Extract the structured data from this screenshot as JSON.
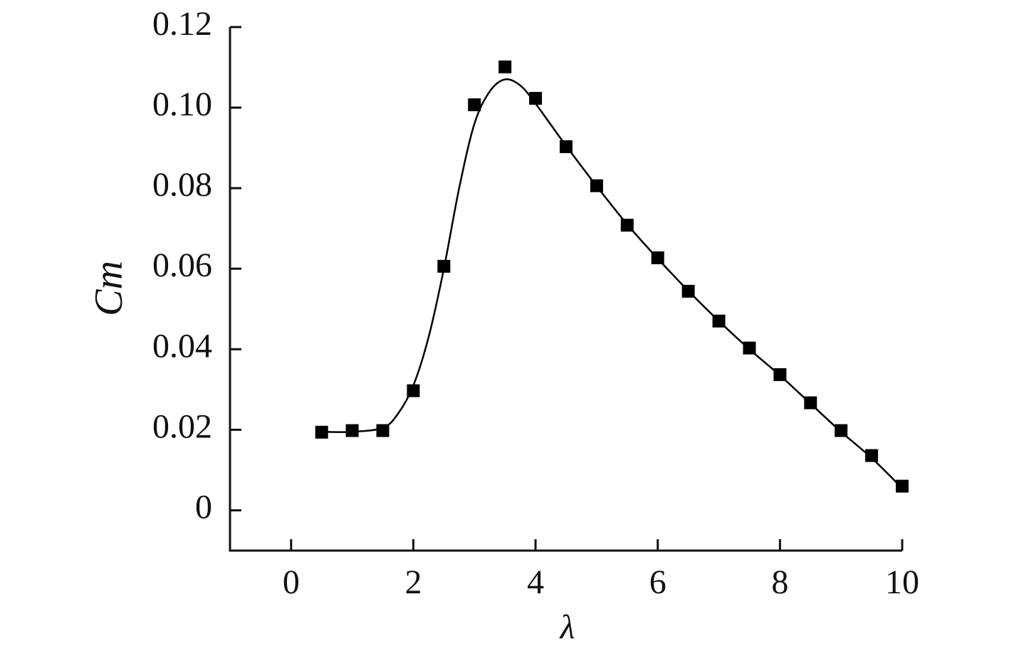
{
  "chart_data": {
    "type": "scatter",
    "xlabel": "λ",
    "ylabel": "Cm",
    "xlim": [
      -1,
      10
    ],
    "ylim": [
      -0.01,
      0.12
    ],
    "xticks": [
      0,
      2,
      4,
      6,
      8,
      10
    ],
    "yticks": [
      0,
      0.02,
      0.04,
      0.06,
      0.08,
      {
        "value": 0.1,
        "label": "0.10"
      },
      0.12
    ],
    "series": [
      {
        "style": "markers",
        "marker": "square",
        "color": "#000000",
        "x": [
          0.5,
          1,
          1.5,
          2,
          2.5,
          3,
          3.5,
          4,
          4.5,
          5,
          5.5,
          6,
          6.5,
          7,
          7.5,
          8,
          8.5,
          9,
          9.5,
          10
        ],
        "values": [
          0.0194,
          0.0198,
          0.0198,
          0.0297,
          0.0606,
          0.1007,
          0.1101,
          0.1023,
          0.0903,
          0.0806,
          0.0708,
          0.0627,
          0.0544,
          0.047,
          0.0403,
          0.0337,
          0.0267,
          0.0198,
          0.0136,
          0.006
        ]
      },
      {
        "style": "smooth-line",
        "color": "#000000",
        "x": [
          0.5,
          1,
          1.5,
          1.75,
          2,
          2.25,
          2.5,
          2.75,
          3,
          3.25,
          3.5,
          3.75,
          4,
          4.5,
          5,
          5.5,
          6,
          6.5,
          7,
          7.5,
          8,
          8.5,
          9,
          9.5,
          10
        ],
        "values": [
          0.0195,
          0.0195,
          0.0205,
          0.024,
          0.031,
          0.043,
          0.06,
          0.08,
          0.096,
          0.104,
          0.107,
          0.1055,
          0.101,
          0.0905,
          0.0805,
          0.071,
          0.0625,
          0.0545,
          0.047,
          0.04,
          0.0335,
          0.0265,
          0.0195,
          0.013,
          0.0055
        ]
      }
    ]
  }
}
